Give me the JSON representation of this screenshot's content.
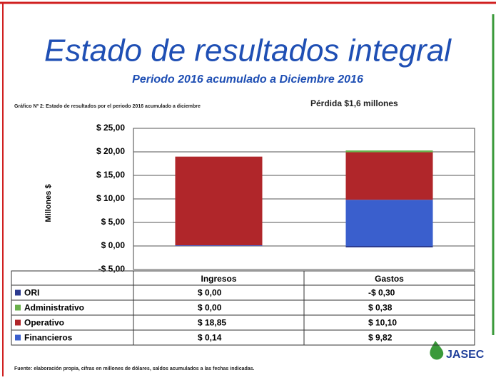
{
  "chart_data": {
    "type": "stacked_bar",
    "title": "Estado de resultados integral",
    "subtitle": "Periodo 2016 acumulado a Diciembre 2016",
    "caption": "Gráfico Nº 2: Estado de resultados por el periodo 2016 acumulado a diciembre",
    "annotation": "Pérdida $1,6 millones",
    "ylabel": "Millones $",
    "source": "Fuente: elaboración propia, cifras en millones de dólares, saldos acumulados a las fechas indicadas.",
    "logo": "JASEC",
    "categories": [
      "Ingresos",
      "Gastos"
    ],
    "series": [
      {
        "name": "ORI",
        "color": "#2b3a8f",
        "values": [
          0.0,
          -0.3
        ],
        "value_labels": [
          "$ 0,00",
          "-$ 0,30"
        ]
      },
      {
        "name": "Administrativo",
        "color": "#6ab04c",
        "values": [
          0.0,
          0.38
        ],
        "value_labels": [
          "$ 0,00",
          "$ 0,38"
        ]
      },
      {
        "name": "Operativo",
        "color": "#b0262a",
        "values": [
          18.85,
          10.1
        ],
        "value_labels": [
          "$ 18,85",
          "$ 10,10"
        ]
      },
      {
        "name": "Financieros",
        "color": "#3a5fcd",
        "values": [
          0.14,
          9.82
        ],
        "value_labels": [
          "$ 0,14",
          "$ 9,82"
        ]
      }
    ],
    "ylim": [
      -5,
      25
    ],
    "yticks": [
      {
        "value": 25,
        "label": "$ 25,00"
      },
      {
        "value": 20,
        "label": "$ 20,00"
      },
      {
        "value": 15,
        "label": "$ 15,00"
      },
      {
        "value": 10,
        "label": "$ 10,00"
      },
      {
        "value": 5,
        "label": "$ 5,00"
      },
      {
        "value": 0,
        "label": "$ 0,00"
      },
      {
        "value": -5,
        "label": "-$ 5,00"
      }
    ],
    "grid": true
  }
}
